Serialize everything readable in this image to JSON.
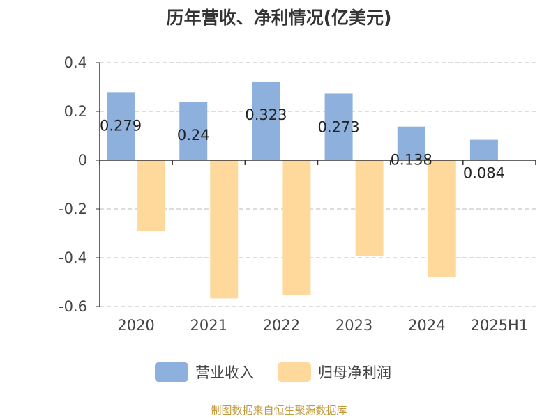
{
  "chart_data": {
    "type": "bar",
    "title": "历年营收、净利情况(亿美元)",
    "categories": [
      "2020",
      "2021",
      "2022",
      "2023",
      "2024",
      "2025H1"
    ],
    "series": [
      {
        "name": "营业收入",
        "values": [
          0.279,
          0.24,
          0.323,
          0.273,
          0.138,
          0.084
        ],
        "color": "#8eb0dd",
        "labels": [
          "0.279",
          "0.24",
          "0.323",
          "0.273",
          "0.138",
          "0.084"
        ]
      },
      {
        "name": "归母净利润",
        "values": [
          -0.29,
          -0.567,
          -0.553,
          -0.392,
          -0.477,
          0.002
        ],
        "color": "#ffd99b"
      }
    ],
    "yticks": [
      "0.4",
      "0.2",
      "0",
      "-0.2",
      "-0.4",
      "-0.6"
    ],
    "ylim": [
      -0.6,
      0.4
    ],
    "grid": true,
    "legend_position": "bottom"
  },
  "source": "制图数据来自恒生聚源数据库"
}
